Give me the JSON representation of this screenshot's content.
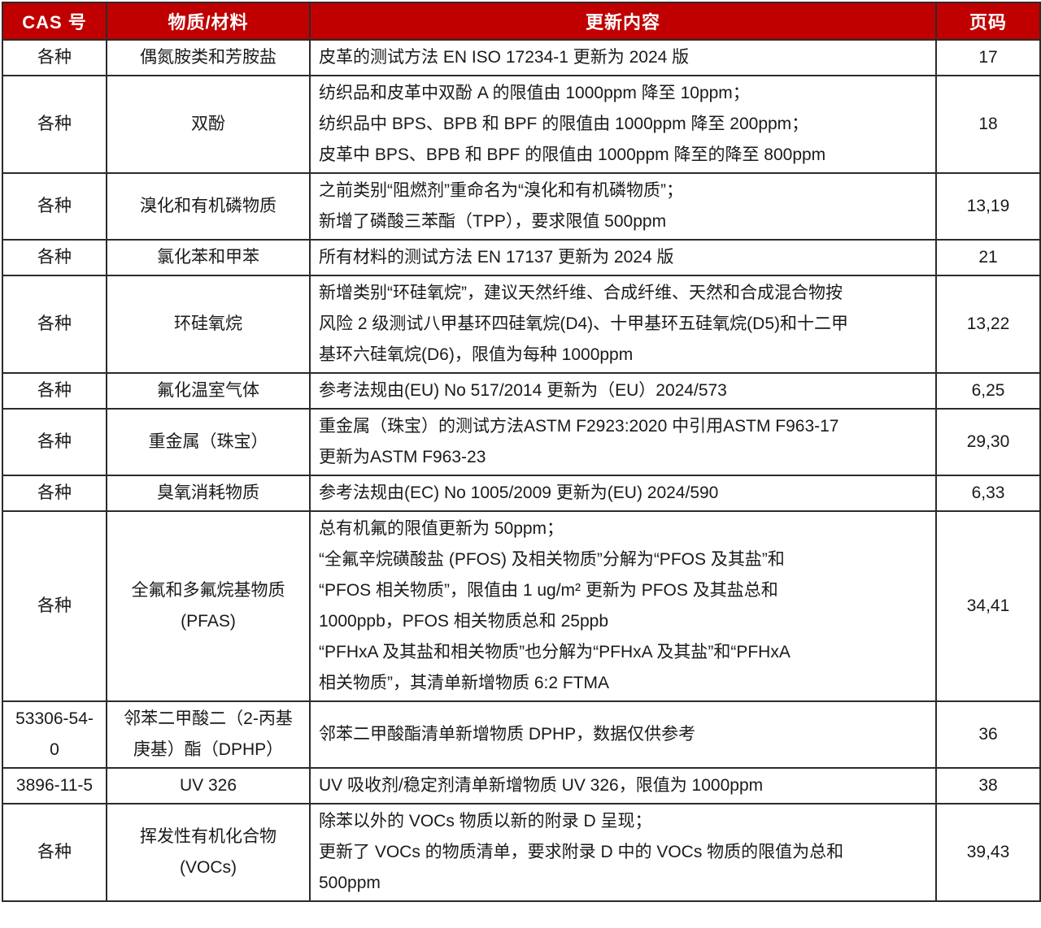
{
  "table": {
    "columns": [
      {
        "key": "cas",
        "label": "CAS 号"
      },
      {
        "key": "material",
        "label": "物质/材料"
      },
      {
        "key": "content",
        "label": "更新内容"
      },
      {
        "key": "page",
        "label": "页码"
      }
    ],
    "rows": [
      {
        "cas": "各种",
        "material": "偶氮胺类和芳胺盐",
        "content_lines": [
          "皮革的测试方法 EN ISO 17234-1 更新为 2024 版"
        ],
        "page": "17"
      },
      {
        "cas": "各种",
        "material": "双酚",
        "content_lines": [
          "纺织品和皮革中双酚 A 的限值由 1000ppm 降至 10ppm；",
          "纺织品中 BPS、BPB 和 BPF 的限值由 1000ppm 降至 200ppm；",
          "皮革中 BPS、BPB 和 BPF 的限值由 1000ppm 降至的降至 800ppm"
        ],
        "page": "18"
      },
      {
        "cas": "各种",
        "material": "溴化和有机磷物质",
        "content_lines": [
          "之前类别“阻燃剂”重命名为“溴化和有机磷物质”；",
          "新增了磷酸三苯酯（TPP），要求限值 500ppm"
        ],
        "page": "13,19"
      },
      {
        "cas": "各种",
        "material": "氯化苯和甲苯",
        "content_lines": [
          "所有材料的测试方法 EN 17137 更新为 2024 版"
        ],
        "page": "21"
      },
      {
        "cas": "各种",
        "material": "环硅氧烷",
        "content_lines": [
          "新增类别“环硅氧烷”，建议天然纤维、合成纤维、天然和合成混合物按",
          "风险 2 级测试八甲基环四硅氧烷(D4)、十甲基环五硅氧烷(D5)和十二甲",
          "基环六硅氧烷(D6)，限值为每种 1000ppm"
        ],
        "page": "13,22"
      },
      {
        "cas": "各种",
        "material": "氟化温室气体",
        "content_lines": [
          "参考法规由(EU) No 517/2014 更新为（EU）2024/573"
        ],
        "page": "6,25"
      },
      {
        "cas": "各种",
        "material": "重金属（珠宝）",
        "content_lines": [
          "重金属（珠宝）的测试方法ASTM F2923:2020 中引用ASTM F963-17",
          "更新为ASTM F963-23"
        ],
        "page": "29,30"
      },
      {
        "cas": "各种",
        "material": "臭氧消耗物质",
        "content_lines": [
          "参考法规由(EC) No 1005/2009 更新为(EU) 2024/590"
        ],
        "page": "6,33"
      },
      {
        "cas": "各种",
        "material": "全氟和多氟烷基物质 (PFAS)",
        "content_lines": [
          "总有机氟的限值更新为 50ppm；",
          "“全氟辛烷磺酸盐 (PFOS) 及相关物质”分解为“PFOS 及其盐”和",
          "“PFOS 相关物质”，限值由 1 ug/m² 更新为 PFOS 及其盐总和",
          "1000ppb，PFOS 相关物质总和 25ppb",
          "“PFHxA 及其盐和相关物质”也分解为“PFHxA 及其盐”和“PFHxA",
          "相关物质”，其清单新增物质 6:2 FTMA"
        ],
        "page": "34,41"
      },
      {
        "cas": "53306-54-0",
        "material": "邻苯二甲酸二（2-丙基庚基）酯（DPHP）",
        "content_lines": [
          "邻苯二甲酸酯清单新增物质 DPHP，数据仅供参考"
        ],
        "page": "36"
      },
      {
        "cas": "3896-11-5",
        "material": "UV 326",
        "content_lines": [
          "UV 吸收剂/稳定剂清单新增物质 UV 326，限值为 1000ppm"
        ],
        "page": "38"
      },
      {
        "cas": "各种",
        "material": "挥发性有机化合物 (VOCs)",
        "content_lines": [
          "除苯以外的 VOCs 物质以新的附录 D 呈现；",
          "更新了 VOCs 的物质清单，要求附录 D 中的 VOCs 物质的限值为总和",
          "500ppm"
        ],
        "page": "39,43"
      }
    ]
  },
  "colors": {
    "header_bg": "#C00000",
    "header_text": "#FFFFFF",
    "border": "#2B2B2B",
    "body_text": "#1A1A1A",
    "row_bg": "#FFFFFF"
  }
}
